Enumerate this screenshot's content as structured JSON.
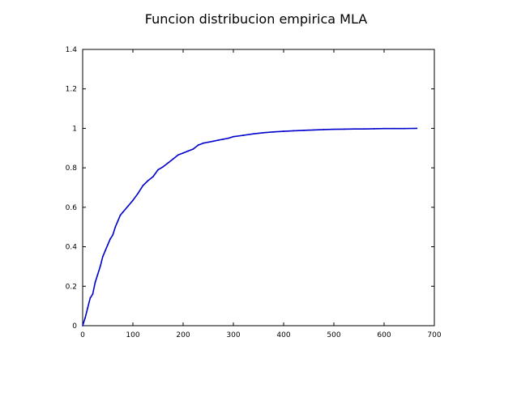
{
  "chart_data": {
    "type": "line",
    "title": "Funcion distribucion empirica MLA",
    "xlabel": "",
    "ylabel": "",
    "xlim": [
      0,
      700
    ],
    "ylim": [
      0,
      1.4
    ],
    "xticks": [
      0,
      100,
      200,
      300,
      400,
      500,
      600,
      700
    ],
    "xtick_labels": [
      "0",
      "100",
      "200",
      "300",
      "400",
      "500",
      "600",
      "700"
    ],
    "yticks": [
      0,
      0.2,
      0.4,
      0.6,
      0.8,
      1,
      1.2,
      1.4
    ],
    "ytick_labels": [
      "0",
      "0.2",
      "0.4",
      "0.6",
      "0.8",
      "1",
      "1.2",
      "1.4"
    ],
    "grid": false,
    "series": [
      {
        "color": "#0000cc",
        "x": [
          0,
          5,
          10,
          15,
          20,
          25,
          30,
          35,
          40,
          45,
          50,
          55,
          60,
          65,
          70,
          75,
          80,
          90,
          100,
          110,
          120,
          130,
          140,
          150,
          160,
          170,
          180,
          190,
          200,
          210,
          220,
          230,
          240,
          250,
          260,
          270,
          280,
          290,
          300,
          320,
          340,
          360,
          380,
          400,
          420,
          440,
          460,
          480,
          500,
          520,
          540,
          560,
          580,
          600,
          620,
          640,
          665
        ],
        "y": [
          0,
          0.04,
          0.09,
          0.14,
          0.16,
          0.22,
          0.26,
          0.3,
          0.35,
          0.38,
          0.41,
          0.44,
          0.46,
          0.5,
          0.53,
          0.56,
          0.575,
          0.605,
          0.635,
          0.67,
          0.71,
          0.735,
          0.755,
          0.79,
          0.805,
          0.825,
          0.845,
          0.865,
          0.875,
          0.885,
          0.895,
          0.915,
          0.925,
          0.93,
          0.935,
          0.94,
          0.945,
          0.95,
          0.958,
          0.965,
          0.972,
          0.978,
          0.982,
          0.985,
          0.988,
          0.99,
          0.992,
          0.994,
          0.995,
          0.996,
          0.997,
          0.997,
          0.998,
          0.999,
          0.999,
          0.999,
          1.0
        ]
      }
    ]
  }
}
